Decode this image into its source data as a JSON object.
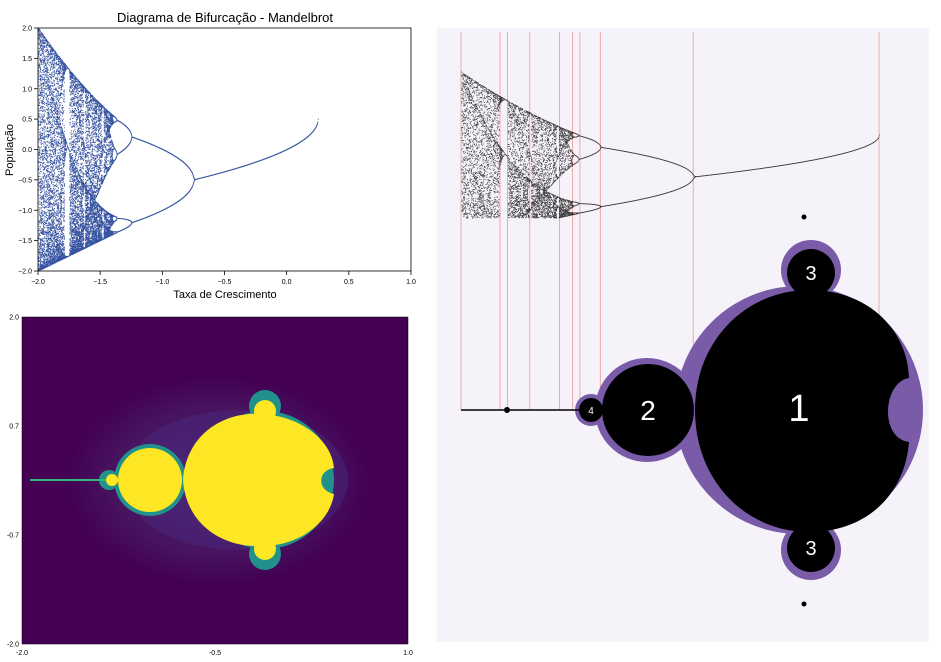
{
  "colors": {
    "series": "#1f3f96",
    "viridis_bg": "#440154",
    "viridis_fill": "#fde725",
    "viridis_mid": "#21918c",
    "annot_bg": "#f5f2f9",
    "annot_fringe": "#7a5ba8",
    "annot_line": "#f0a0a0"
  },
  "chart_data": [
    {
      "type": "scatter",
      "title": "Diagrama de Bifurcação - Mandelbrot",
      "xlabel": "Taxa de Crescimento",
      "ylabel": "População",
      "xlim": [
        -2.0,
        1.0
      ],
      "ylim": [
        -2.0,
        2.0
      ],
      "xticks": [
        "−2.0",
        "−1.5",
        "−1.0",
        "−0.5",
        "0.0",
        "0.5",
        "1.0"
      ],
      "yticks": [
        "2.0",
        "1.5",
        "1.0",
        "0.5",
        "0.0",
        "−0.5",
        "−1.0",
        "−1.5",
        "−2.0"
      ],
      "grid": false,
      "series": [
        {
          "branch_fixed_point": [
            [
              -0.75,
              -0.5
            ],
            [
              -0.6,
              -0.42
            ],
            [
              -0.4,
              -0.26
            ],
            [
              -0.2,
              -0.12
            ],
            [
              0.0,
              0.0
            ],
            [
              0.1,
              0.11
            ],
            [
              0.25,
              0.5
            ]
          ],
          "branch_period2_upper": [
            [
              -0.75,
              -0.5
            ],
            [
              -0.85,
              0.0
            ],
            [
              -1.0,
              0.3
            ],
            [
              -1.15,
              0.55
            ],
            [
              -1.25,
              0.7
            ]
          ],
          "branch_period2_lower": [
            [
              -0.75,
              -0.5
            ],
            [
              -0.85,
              -0.9
            ],
            [
              -1.0,
              -1.05
            ],
            [
              -1.15,
              -1.18
            ],
            [
              -1.25,
              -1.2
            ]
          ],
          "period4_values_at_x_-1.3": [
            1.0,
            0.4,
            -1.1,
            -1.3
          ],
          "chaos_onset_x": -1.401,
          "chaotic_envelope_at_x_-2.0": [
            -2.0,
            2.0
          ],
          "period3_window_x": [
            -1.79,
            -1.75
          ]
        }
      ]
    },
    {
      "type": "heatmap",
      "xlim": [
        -2.0,
        1.0
      ],
      "ylim": [
        -2.0,
        2.0
      ],
      "xticks": [
        "-2.0",
        "-0.5",
        "1.0"
      ],
      "yticks": [
        "2.0",
        "0.7",
        "-0.7",
        "-2.0"
      ],
      "colormap": "viridis"
    },
    {
      "type": "other",
      "region_labels": [
        "1",
        "2",
        "3",
        "3",
        "4"
      ]
    }
  ]
}
